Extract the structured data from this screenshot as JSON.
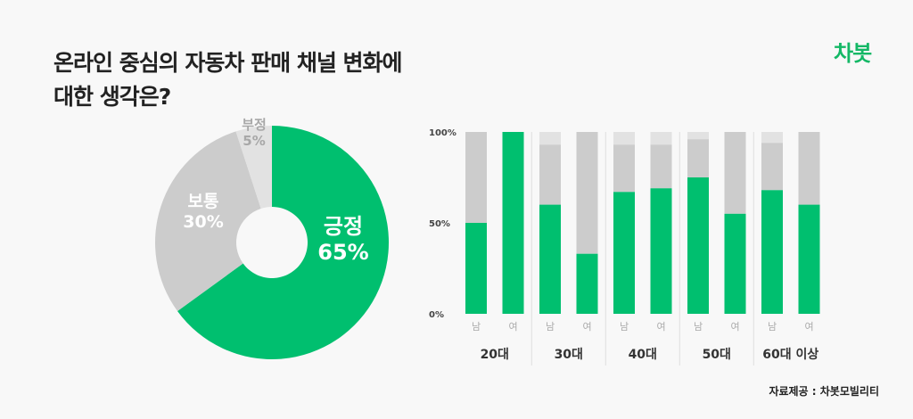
{
  "title_line1": "온라인 중심의 자동차 판매 채널 변화에",
  "title_line2": "대한 생각은?",
  "logo": "차봇",
  "source": "자료제공 : 차봇모빌리티",
  "colors": {
    "positive": "#00bf6f",
    "neutral": "#cccccc",
    "negative": "#e2e2e2",
    "background": "#f8f8f8"
  },
  "chart_data": [
    {
      "type": "pie",
      "style": "donut",
      "start": "top",
      "direction": "clockwise",
      "slices": [
        {
          "label": "긍정",
          "value": 65,
          "text": "65%"
        },
        {
          "label": "보통",
          "value": 30,
          "text": "30%"
        },
        {
          "label": "부정",
          "value": 5,
          "text": "5%"
        }
      ]
    },
    {
      "type": "bar",
      "stacked": true,
      "ylim": [
        0,
        100
      ],
      "yticks": [
        "0%",
        "50%",
        "100%"
      ],
      "groups": [
        {
          "label": "20대",
          "bars": [
            {
              "label": "남",
              "pos": 50,
              "neu": 50,
              "neg": 0
            },
            {
              "label": "여",
              "pos": 100,
              "neu": 0,
              "neg": 0
            }
          ]
        },
        {
          "label": "30대",
          "bars": [
            {
              "label": "남",
              "pos": 60,
              "neu": 33,
              "neg": 7
            },
            {
              "label": "여",
              "pos": 33,
              "neu": 67,
              "neg": 0
            }
          ]
        },
        {
          "label": "40대",
          "bars": [
            {
              "label": "남",
              "pos": 67,
              "neu": 26,
              "neg": 7
            },
            {
              "label": "여",
              "pos": 69,
              "neu": 24,
              "neg": 7
            }
          ]
        },
        {
          "label": "50대",
          "bars": [
            {
              "label": "남",
              "pos": 75,
              "neu": 21,
              "neg": 4
            },
            {
              "label": "여",
              "pos": 55,
              "neu": 45,
              "neg": 0
            }
          ]
        },
        {
          "label": "60대 이상",
          "bars": [
            {
              "label": "남",
              "pos": 68,
              "neu": 26,
              "neg": 6
            },
            {
              "label": "여",
              "pos": 60,
              "neu": 40,
              "neg": 0
            }
          ]
        }
      ]
    }
  ]
}
